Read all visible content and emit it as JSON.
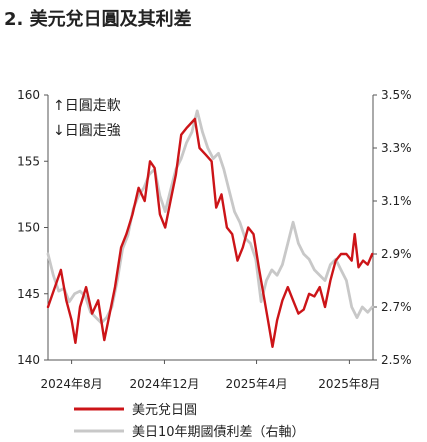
{
  "title": "2. 美元兌日圓及其利差",
  "annotations": [
    "↑日圓走軟",
    "↓日圓走強"
  ],
  "colors": {
    "primary": "#cc1418",
    "secondary": "#c8c8c8",
    "axis": "#555555"
  },
  "chart_data": {
    "type": "line",
    "title": "2. 美元兌日圓及其利差",
    "legend_position": "bottom",
    "grid": false,
    "x_ticks": [
      "2024年8月",
      "2024年12月",
      "2025年4月",
      "2025年8月"
    ],
    "x_range": [
      "2024-07",
      "2025-09"
    ],
    "ylim_left": [
      140,
      160
    ],
    "yticks_left": [
      "140",
      "145",
      "150",
      "155",
      "160"
    ],
    "ylim_right": [
      2.5,
      3.5
    ],
    "yticks_right": [
      "2.5%",
      "2.7%",
      "2.9%",
      "3.1%",
      "3.3%",
      "3.5%"
    ],
    "series": [
      {
        "name": "美元兌日圓",
        "axis": "left",
        "color": "#cc1418",
        "points": [
          [
            "2024-07-01",
            144.0
          ],
          [
            "2024-07-10",
            145.5
          ],
          [
            "2024-07-18",
            146.8
          ],
          [
            "2024-07-25",
            144.5
          ],
          [
            "2024-08-01",
            143.0
          ],
          [
            "2024-08-06",
            141.3
          ],
          [
            "2024-08-12",
            144.0
          ],
          [
            "2024-08-20",
            145.5
          ],
          [
            "2024-08-28",
            143.5
          ],
          [
            "2024-09-05",
            144.5
          ],
          [
            "2024-09-13",
            141.5
          ],
          [
            "2024-09-20",
            143.5
          ],
          [
            "2024-09-27",
            145.5
          ],
          [
            "2024-10-05",
            148.5
          ],
          [
            "2024-10-12",
            149.5
          ],
          [
            "2024-10-20",
            151.0
          ],
          [
            "2024-10-28",
            153.0
          ],
          [
            "2024-11-05",
            152.0
          ],
          [
            "2024-11-12",
            155.0
          ],
          [
            "2024-11-18",
            154.5
          ],
          [
            "2024-11-25",
            151.0
          ],
          [
            "2024-12-02",
            150.0
          ],
          [
            "2024-12-09",
            152.0
          ],
          [
            "2024-12-16",
            154.0
          ],
          [
            "2024-12-23",
            157.0
          ],
          [
            "2024-12-30",
            157.5
          ],
          [
            "2025-01-07",
            158.0
          ],
          [
            "2025-01-10",
            158.2
          ],
          [
            "2025-01-16",
            156.0
          ],
          [
            "2025-01-24",
            155.5
          ],
          [
            "2025-02-01",
            155.0
          ],
          [
            "2025-02-07",
            151.5
          ],
          [
            "2025-02-14",
            152.5
          ],
          [
            "2025-02-21",
            150.0
          ],
          [
            "2025-02-28",
            149.5
          ],
          [
            "2025-03-07",
            147.5
          ],
          [
            "2025-03-14",
            148.5
          ],
          [
            "2025-03-21",
            150.0
          ],
          [
            "2025-03-28",
            149.5
          ],
          [
            "2025-04-04",
            147.0
          ],
          [
            "2025-04-10",
            145.0
          ],
          [
            "2025-04-16",
            143.0
          ],
          [
            "2025-04-22",
            141.0
          ],
          [
            "2025-04-28",
            143.0
          ],
          [
            "2025-05-05",
            144.5
          ],
          [
            "2025-05-12",
            145.5
          ],
          [
            "2025-05-19",
            144.5
          ],
          [
            "2025-05-26",
            143.5
          ],
          [
            "2025-06-02",
            143.8
          ],
          [
            "2025-06-09",
            145.0
          ],
          [
            "2025-06-16",
            144.8
          ],
          [
            "2025-06-23",
            145.5
          ],
          [
            "2025-06-30",
            144.0
          ],
          [
            "2025-07-07",
            146.0
          ],
          [
            "2025-07-14",
            147.5
          ],
          [
            "2025-07-21",
            148.0
          ],
          [
            "2025-07-28",
            148.0
          ],
          [
            "2025-08-04",
            147.5
          ],
          [
            "2025-08-08",
            149.5
          ],
          [
            "2025-08-13",
            147.0
          ],
          [
            "2025-08-19",
            147.5
          ],
          [
            "2025-08-25",
            147.2
          ],
          [
            "2025-08-31",
            148.0
          ]
        ]
      },
      {
        "name": "美日10年期國債利差（右軸）",
        "axis": "right",
        "color": "#c8c8c8",
        "points": [
          [
            "2024-07-01",
            2.9
          ],
          [
            "2024-07-08",
            2.82
          ],
          [
            "2024-07-15",
            2.76
          ],
          [
            "2024-07-22",
            2.77
          ],
          [
            "2024-07-29",
            2.72
          ],
          [
            "2024-08-05",
            2.75
          ],
          [
            "2024-08-12",
            2.76
          ],
          [
            "2024-08-19",
            2.74
          ],
          [
            "2024-08-26",
            2.68
          ],
          [
            "2024-09-02",
            2.66
          ],
          [
            "2024-09-09",
            2.64
          ],
          [
            "2024-09-16",
            2.66
          ],
          [
            "2024-09-23",
            2.7
          ],
          [
            "2024-09-30",
            2.8
          ],
          [
            "2024-10-07",
            2.92
          ],
          [
            "2024-10-14",
            2.97
          ],
          [
            "2024-10-21",
            3.07
          ],
          [
            "2024-10-28",
            3.12
          ],
          [
            "2024-11-04",
            3.15
          ],
          [
            "2024-11-11",
            3.2
          ],
          [
            "2024-11-18",
            3.22
          ],
          [
            "2024-11-25",
            3.12
          ],
          [
            "2024-12-02",
            3.06
          ],
          [
            "2024-12-09",
            3.14
          ],
          [
            "2024-12-16",
            3.22
          ],
          [
            "2024-12-23",
            3.26
          ],
          [
            "2024-12-30",
            3.32
          ],
          [
            "2025-01-06",
            3.36
          ],
          [
            "2025-01-13",
            3.44
          ],
          [
            "2025-01-20",
            3.36
          ],
          [
            "2025-01-27",
            3.3
          ],
          [
            "2025-02-03",
            3.26
          ],
          [
            "2025-02-10",
            3.28
          ],
          [
            "2025-02-17",
            3.22
          ],
          [
            "2025-02-24",
            3.14
          ],
          [
            "2025-03-03",
            3.06
          ],
          [
            "2025-03-10",
            3.02
          ],
          [
            "2025-03-17",
            2.96
          ],
          [
            "2025-03-24",
            2.94
          ],
          [
            "2025-03-31",
            2.88
          ],
          [
            "2025-04-07",
            2.72
          ],
          [
            "2025-04-14",
            2.8
          ],
          [
            "2025-04-21",
            2.84
          ],
          [
            "2025-04-28",
            2.82
          ],
          [
            "2025-05-05",
            2.86
          ],
          [
            "2025-05-12",
            2.94
          ],
          [
            "2025-05-19",
            3.02
          ],
          [
            "2025-05-26",
            2.94
          ],
          [
            "2025-06-02",
            2.9
          ],
          [
            "2025-06-09",
            2.88
          ],
          [
            "2025-06-16",
            2.84
          ],
          [
            "2025-06-23",
            2.82
          ],
          [
            "2025-06-30",
            2.8
          ],
          [
            "2025-07-07",
            2.86
          ],
          [
            "2025-07-14",
            2.88
          ],
          [
            "2025-07-21",
            2.84
          ],
          [
            "2025-07-28",
            2.8
          ],
          [
            "2025-08-04",
            2.7
          ],
          [
            "2025-08-11",
            2.66
          ],
          [
            "2025-08-18",
            2.7
          ],
          [
            "2025-08-25",
            2.68
          ],
          [
            "2025-08-31",
            2.7
          ]
        ]
      }
    ]
  }
}
